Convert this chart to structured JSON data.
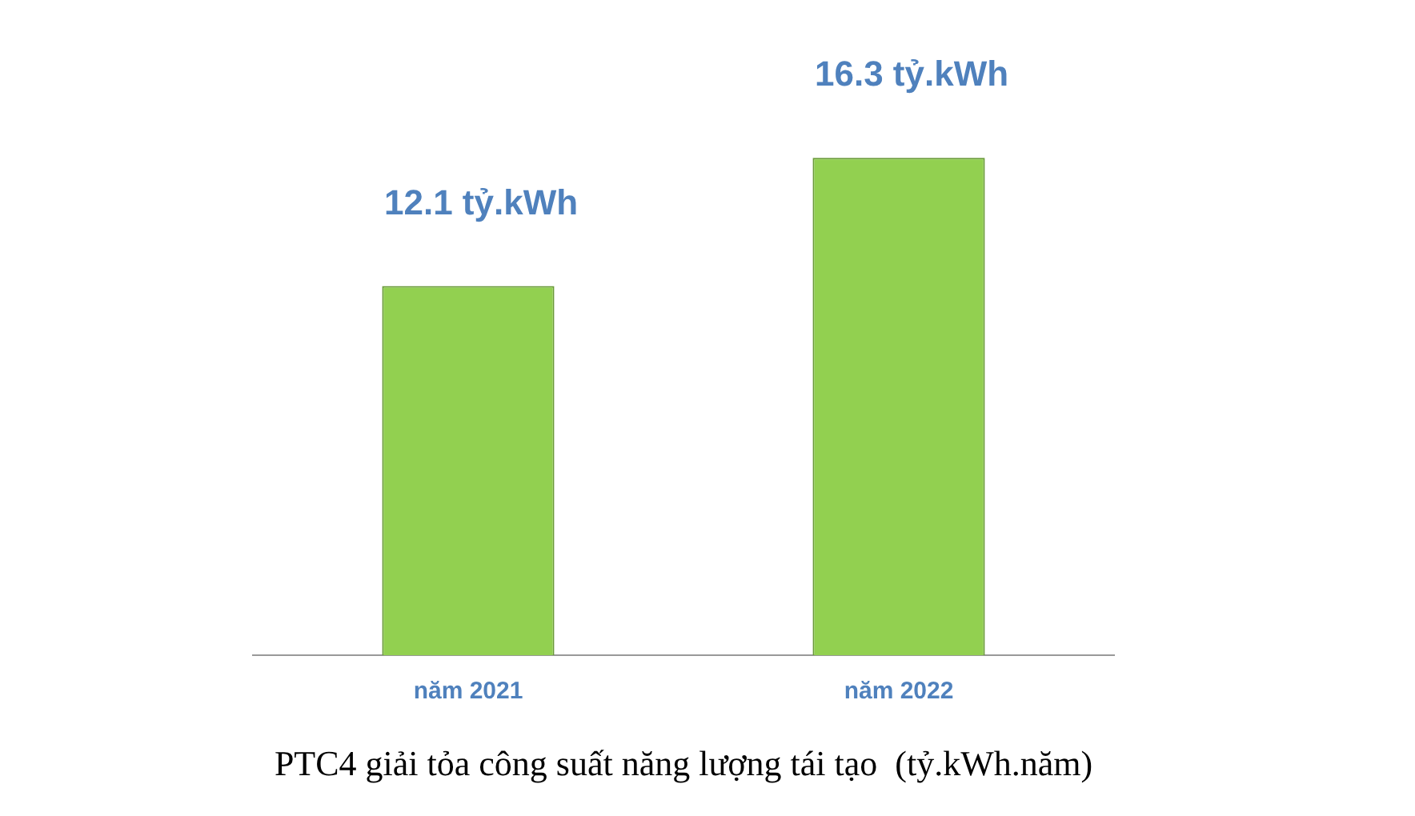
{
  "chart_data": {
    "type": "bar",
    "title": "PTC4 giải tỏa công suất năng lượng tái tạo  (tỷ.kWh.năm)",
    "categories": [
      "năm 2021",
      "năm 2022"
    ],
    "values": [
      12.1,
      16.3
    ],
    "value_labels": [
      "12.1 tỷ.kWh",
      "16.3 tỷ.kWh"
    ],
    "color": "#92d050",
    "grid": false,
    "legend": false
  }
}
